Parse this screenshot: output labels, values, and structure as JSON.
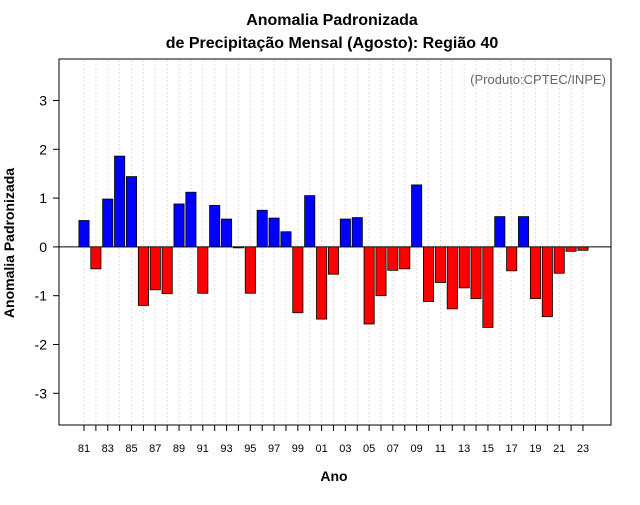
{
  "chart_data": {
    "type": "bar",
    "title": "Anomalia Padronizada",
    "subtitle": "de Precipitação Mensal (Agosto): Região 40",
    "xlabel": "Ano",
    "ylabel": "Anomalia Padronizada",
    "credit": "(Produto:CPTEC/INPE)",
    "ylim": [
      -3.65,
      3.85
    ],
    "yticks": [
      "3",
      "2",
      "1",
      "0",
      "-1",
      "-2",
      "-3"
    ],
    "ytick_values": [
      3,
      2,
      1,
      0,
      -1,
      -2,
      -3
    ],
    "x_tick_labels": [
      "81",
      "83",
      "85",
      "87",
      "89",
      "91",
      "93",
      "95",
      "97",
      "99",
      "01",
      "03",
      "05",
      "07",
      "09",
      "11",
      "13",
      "15",
      "17",
      "19",
      "21",
      "23"
    ],
    "categories": [
      1981,
      1982,
      1983,
      1984,
      1985,
      1986,
      1987,
      1988,
      1989,
      1990,
      1991,
      1992,
      1993,
      1994,
      1995,
      1996,
      1997,
      1998,
      1999,
      2000,
      2001,
      2002,
      2003,
      2004,
      2005,
      2006,
      2007,
      2008,
      2009,
      2010,
      2011,
      2012,
      2013,
      2014,
      2015,
      2016,
      2017,
      2018,
      2019,
      2020,
      2021,
      2022,
      2023
    ],
    "values": [
      0.54,
      -0.45,
      0.98,
      1.86,
      1.44,
      -1.2,
      -0.88,
      -0.96,
      0.88,
      1.12,
      -0.95,
      0.85,
      0.57,
      -0.02,
      -0.95,
      0.75,
      0.59,
      0.31,
      -1.35,
      1.05,
      -1.48,
      -0.56,
      0.57,
      0.6,
      -1.58,
      -1.0,
      -0.48,
      -0.45,
      1.27,
      -1.12,
      -0.73,
      -1.27,
      -0.84,
      -1.06,
      -1.65,
      0.62,
      -0.49,
      0.62,
      -1.06,
      -1.43,
      -0.54,
      -0.09,
      -0.07
    ],
    "positive_color": "#0000ff",
    "negative_color": "#ff0000",
    "grid": true
  }
}
